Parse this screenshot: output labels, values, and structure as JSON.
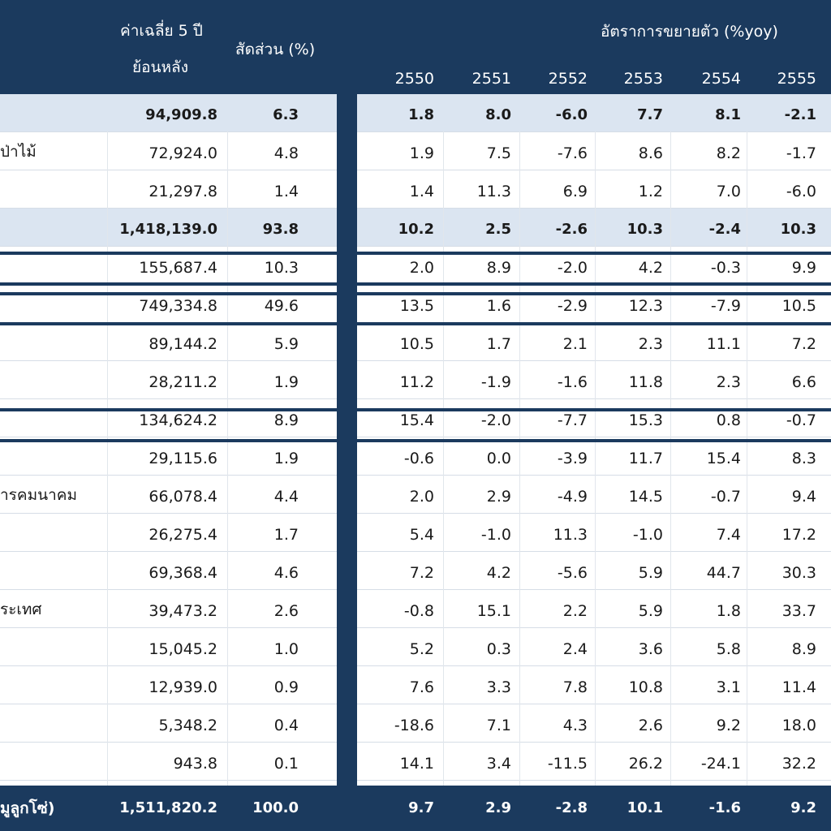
{
  "header": {
    "avg_line1": "ค่าเฉลี่ย 5 ปี",
    "avg_line2": "ย้อนหลัง",
    "share": "สัดส่วน (%)",
    "growth": "อัตราการขยายตัว (%yoy)",
    "years": [
      "2550",
      "2551",
      "2552",
      "2553",
      "2554",
      "2555"
    ]
  },
  "rows": [
    {
      "label": "",
      "avg": "94,909.8",
      "share": "6.3",
      "g": [
        "1.8",
        "8.0",
        "-6.0",
        "7.7",
        "8.1",
        "-2.1"
      ],
      "bold": true,
      "band": true
    },
    {
      "label": "ป่าไม้",
      "avg": "72,924.0",
      "share": "4.8",
      "g": [
        "1.9",
        "7.5",
        "-7.6",
        "8.6",
        "8.2",
        "-1.7"
      ]
    },
    {
      "label": "",
      "avg": "21,297.8",
      "share": "1.4",
      "g": [
        "1.4",
        "11.3",
        "6.9",
        "1.2",
        "7.0",
        "-6.0"
      ]
    },
    {
      "label": "",
      "avg": "1,418,139.0",
      "share": "93.8",
      "g": [
        "10.2",
        "2.5",
        "-2.6",
        "10.3",
        "-2.4",
        "10.3"
      ],
      "bold": true,
      "band": true
    },
    {
      "label": "",
      "avg": "155,687.4",
      "share": "10.3",
      "g": [
        "2.0",
        "8.9",
        "-2.0",
        "4.2",
        "-0.3",
        "9.9"
      ]
    },
    {
      "label": "",
      "avg": "749,334.8",
      "share": "49.6",
      "g": [
        "13.5",
        "1.6",
        "-2.9",
        "12.3",
        "-7.9",
        "10.5"
      ]
    },
    {
      "label": "",
      "avg": "89,144.2",
      "share": "5.9",
      "g": [
        "10.5",
        "1.7",
        "2.1",
        "2.3",
        "11.1",
        "7.2"
      ]
    },
    {
      "label": "",
      "avg": "28,211.2",
      "share": "1.9",
      "g": [
        "11.2",
        "-1.9",
        "-1.6",
        "11.8",
        "2.3",
        "6.6"
      ]
    },
    {
      "label": "",
      "avg": "134,624.2",
      "share": "8.9",
      "g": [
        "15.4",
        "-2.0",
        "-7.7",
        "15.3",
        "0.8",
        "-0.7"
      ]
    },
    {
      "label": "",
      "avg": "29,115.6",
      "share": "1.9",
      "g": [
        "-0.6",
        "0.0",
        "-3.9",
        "11.7",
        "15.4",
        "8.3"
      ]
    },
    {
      "label": "ารคมนาคม",
      "avg": "66,078.4",
      "share": "4.4",
      "g": [
        "2.0",
        "2.9",
        "-4.9",
        "14.5",
        "-0.7",
        "9.4"
      ]
    },
    {
      "label": "",
      "avg": "26,275.4",
      "share": "1.7",
      "g": [
        "5.4",
        "-1.0",
        "11.3",
        "-1.0",
        "7.4",
        "17.2"
      ]
    },
    {
      "label": "",
      "avg": "69,368.4",
      "share": "4.6",
      "g": [
        "7.2",
        "4.2",
        "-5.6",
        "5.9",
        "44.7",
        "30.3"
      ]
    },
    {
      "label": "ระเทศ",
      "avg": "39,473.2",
      "share": "2.6",
      "g": [
        "-0.8",
        "15.1",
        "2.2",
        "5.9",
        "1.8",
        "33.7"
      ]
    },
    {
      "label": "",
      "avg": "15,045.2",
      "share": "1.0",
      "g": [
        "5.2",
        "0.3",
        "2.4",
        "3.6",
        "5.8",
        "8.9"
      ]
    },
    {
      "label": "",
      "avg": "12,939.0",
      "share": "0.9",
      "g": [
        "7.6",
        "3.3",
        "7.8",
        "10.8",
        "3.1",
        "11.4"
      ]
    },
    {
      "label": "",
      "avg": "5,348.2",
      "share": "0.4",
      "g": [
        "-18.6",
        "7.1",
        "4.3",
        "2.6",
        "9.2",
        "18.0"
      ]
    },
    {
      "label": "",
      "avg": "943.8",
      "share": "0.1",
      "g": [
        "14.1",
        "3.4",
        "-11.5",
        "26.2",
        "-24.1",
        "32.2"
      ]
    }
  ],
  "total": {
    "label": "มูลูกโซ่)",
    "avg": "1,511,820.2",
    "share": "100.0",
    "g": [
      "9.7",
      "2.9",
      "-2.8",
      "10.1",
      "-1.6",
      "9.2"
    ]
  }
}
